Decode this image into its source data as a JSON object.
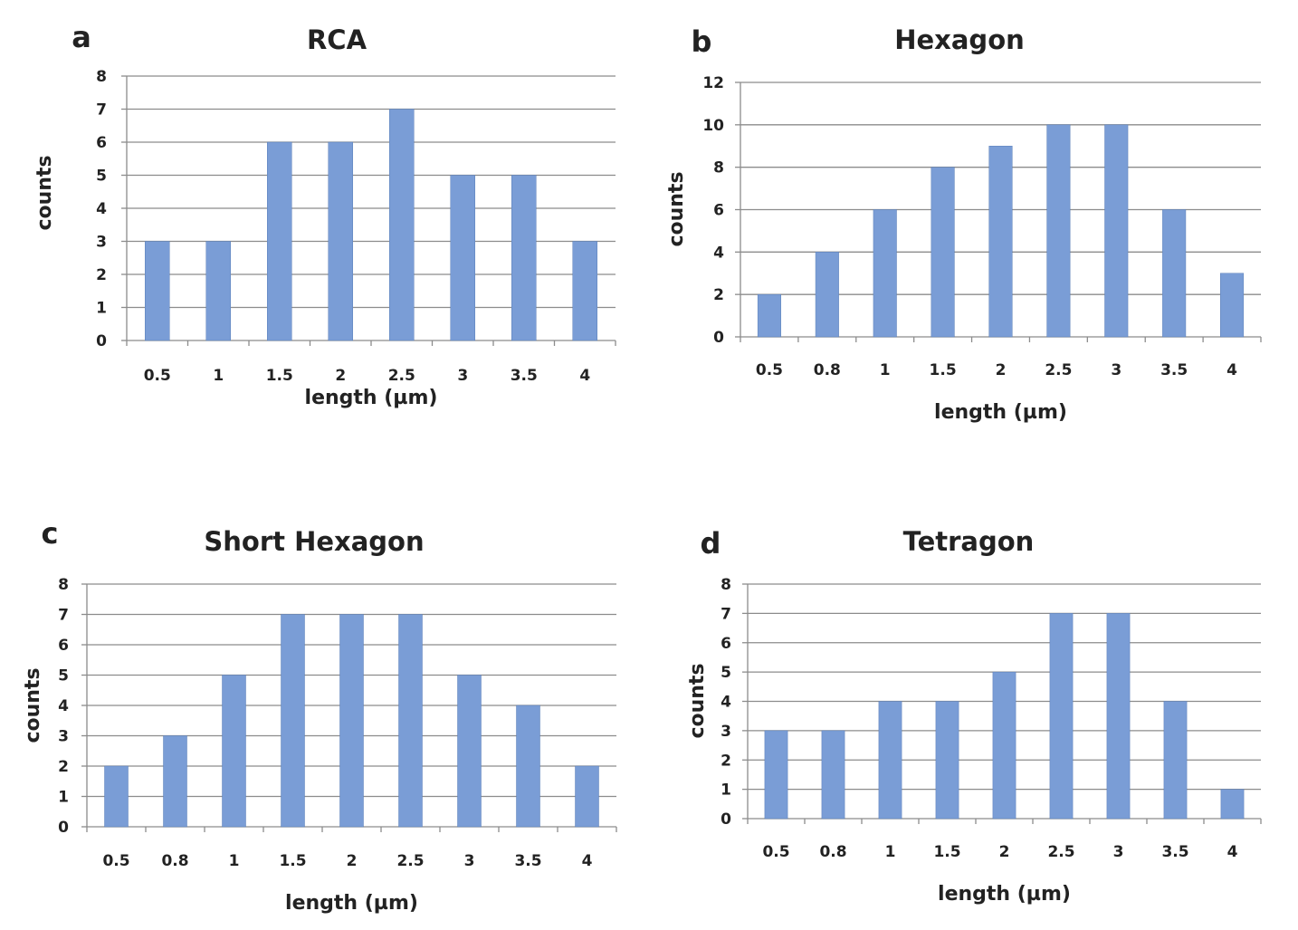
{
  "colors": {
    "bar": "#7a9dd6",
    "grid": "#8c8c8c",
    "text": "#222222"
  },
  "chart_data": [
    {
      "panel": "a",
      "type": "bar",
      "title": "RCA",
      "xlabel": "length (µm)",
      "ylabel": "counts",
      "categories": [
        "0.5",
        "1",
        "1.5",
        "2",
        "2.5",
        "3",
        "3.5",
        "4"
      ],
      "values": [
        3,
        3,
        6,
        6,
        7,
        5,
        5,
        3
      ],
      "ylim": [
        0,
        8
      ],
      "yticks": [
        "0",
        "1",
        "2",
        "3",
        "4",
        "5",
        "6",
        "7",
        "8"
      ],
      "grid": true
    },
    {
      "panel": "b",
      "type": "bar",
      "title": "Hexagon",
      "xlabel": "length (µm)",
      "ylabel": "counts",
      "categories": [
        "0.5",
        "0.8",
        "1",
        "1.5",
        "2",
        "2.5",
        "3",
        "3.5",
        "4"
      ],
      "values": [
        2,
        4,
        6,
        8,
        9,
        10,
        10,
        6,
        3
      ],
      "ylim": [
        0,
        12
      ],
      "yticks": [
        "0",
        "2",
        "4",
        "6",
        "8",
        "10",
        "12"
      ],
      "grid": true
    },
    {
      "panel": "c",
      "type": "bar",
      "title": "Short Hexagon",
      "xlabel": "length (µm)",
      "ylabel": "counts",
      "categories": [
        "0.5",
        "0.8",
        "1",
        "1.5",
        "2",
        "2.5",
        "3",
        "3.5",
        "4"
      ],
      "values": [
        2,
        3,
        5,
        7,
        7,
        7,
        5,
        4,
        2
      ],
      "ylim": [
        0,
        8
      ],
      "yticks": [
        "0",
        "1",
        "2",
        "3",
        "4",
        "5",
        "6",
        "7",
        "8"
      ],
      "grid": true
    },
    {
      "panel": "d",
      "type": "bar",
      "title": "Tetragon",
      "xlabel": "length (µm)",
      "ylabel": "counts",
      "categories": [
        "0.5",
        "0.8",
        "1",
        "1.5",
        "2",
        "2.5",
        "3",
        "3.5",
        "4"
      ],
      "values": [
        3,
        3,
        4,
        4,
        5,
        7,
        7,
        4,
        1
      ],
      "ylim": [
        0,
        8
      ],
      "yticks": [
        "0",
        "1",
        "2",
        "3",
        "4",
        "5",
        "6",
        "7",
        "8"
      ],
      "grid": true
    }
  ]
}
